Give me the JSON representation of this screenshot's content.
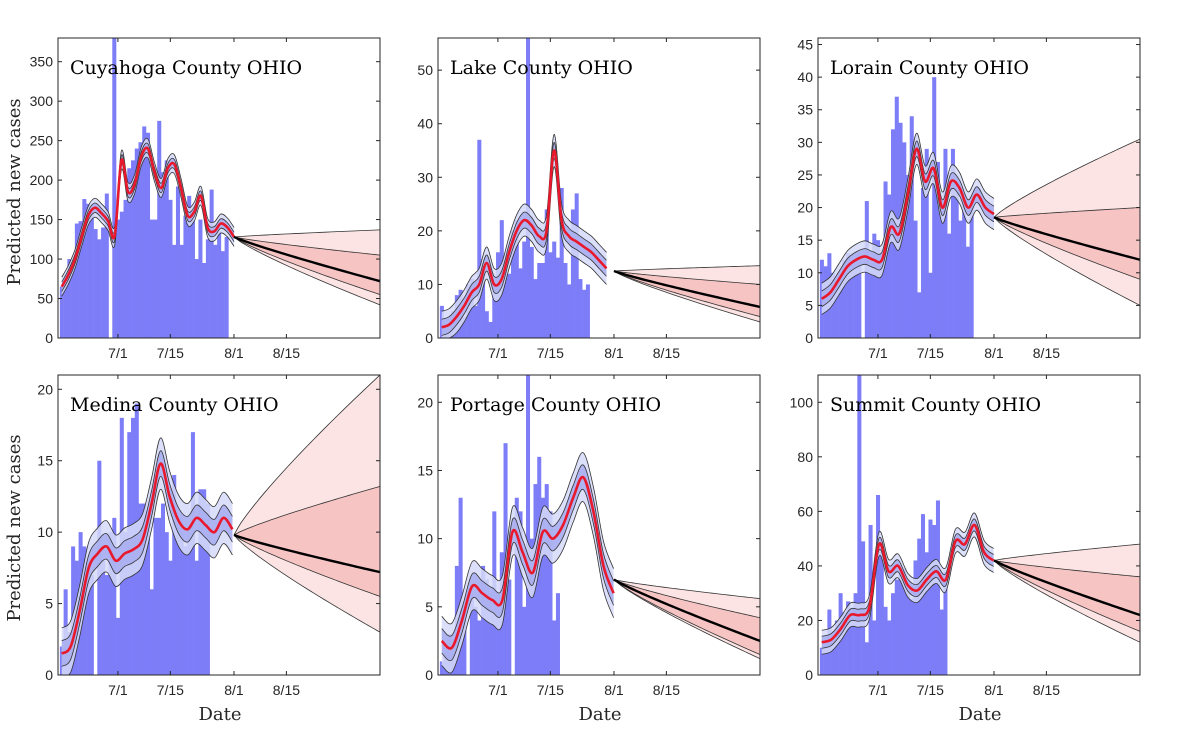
{
  "figure": {
    "ylabel": "Predicted new cases",
    "xlabel": "Date"
  },
  "colors": {
    "bars": "#7d7df8",
    "fit": "#e8192c",
    "band_inner": "#a9aef0",
    "band_outer": "#d5d9f8",
    "forecast": "#000000",
    "forecast_inner": "#f7c4c4",
    "forecast_outer": "#fce4e4"
  },
  "chart_data": [
    {
      "type": "bar",
      "title": "Cuyahoga County OHIO",
      "ylabel": "Predicted new cases",
      "xlabel": "",
      "ylim": [
        0,
        380
      ],
      "yticks": [
        0,
        50,
        100,
        150,
        200,
        250,
        300,
        350
      ],
      "xlim": [
        0,
        86
      ],
      "xticks": [
        {
          "x": 16,
          "label": "7/1"
        },
        {
          "x": 30,
          "label": "7/15"
        },
        {
          "x": 47,
          "label": "8/1"
        },
        {
          "x": 61,
          "label": "8/15"
        }
      ],
      "bars_x_start": 1,
      "bars": [
        65,
        75,
        100,
        95,
        145,
        148,
        176,
        170,
        160,
        138,
        125,
        140,
        183,
        0,
        380,
        150,
        160,
        175,
        215,
        225,
        240,
        248,
        268,
        260,
        150,
        150,
        275,
        210,
        225,
        175,
        118,
        192,
        118,
        155,
        180,
        150,
        100,
        150,
        95,
        125,
        188,
        118,
        135,
        110,
        128
      ],
      "fit": [
        65,
        80,
        100,
        128,
        155,
        165,
        158,
        148,
        130,
        225,
        185,
        195,
        230,
        240,
        210,
        190,
        215,
        220,
        190,
        155,
        160,
        180,
        140,
        135,
        145,
        140,
        128
      ],
      "fit_x_start": 1,
      "fit_x_step": 1.77,
      "band_inner_halfwidth": 6,
      "band_outer_halfwidth": 12,
      "forecast": {
        "x_start": 47,
        "x_end": 86,
        "start": 128,
        "end": 72,
        "inner_upper": 105,
        "inner_lower": 55,
        "outer_upper": 137,
        "outer_lower": 42
      }
    },
    {
      "type": "bar",
      "title": "Lake County OHIO",
      "ylabel": "",
      "xlabel": "",
      "ylim": [
        0,
        56
      ],
      "yticks": [
        0,
        10,
        20,
        30,
        40,
        50
      ],
      "xlim": [
        0,
        86
      ],
      "xticks": [
        {
          "x": 16,
          "label": "7/1"
        },
        {
          "x": 30,
          "label": "7/15"
        },
        {
          "x": 47,
          "label": "8/1"
        },
        {
          "x": 61,
          "label": "8/15"
        }
      ],
      "bars_x_start": 1,
      "bars": [
        6,
        2,
        3,
        5,
        8,
        9,
        4,
        10,
        11,
        6,
        37,
        14,
        5,
        3,
        10,
        16,
        22,
        14,
        12,
        20,
        22,
        13,
        18,
        56,
        17,
        11,
        14,
        14,
        24,
        16,
        18,
        15,
        28,
        14,
        10,
        24,
        27,
        11,
        9,
        10
      ],
      "fit": [
        2,
        2.5,
        4,
        6,
        8.5,
        10,
        14,
        10,
        11,
        16,
        20,
        22,
        21,
        19,
        20,
        35,
        22,
        19,
        18,
        17,
        16,
        14.5,
        13
      ],
      "fit_x_start": 1,
      "fit_x_step": 2.0,
      "band_inner_halfwidth": 1.5,
      "band_outer_halfwidth": 3,
      "forecast": {
        "x_start": 47,
        "x_end": 86,
        "start": 12.5,
        "end": 5.8,
        "inner_upper": 10,
        "inner_lower": 4,
        "outer_upper": 13.5,
        "outer_lower": 3
      }
    },
    {
      "type": "bar",
      "title": "Lorain County OHIO",
      "ylabel": "",
      "xlabel": "",
      "ylim": [
        0,
        46
      ],
      "yticks": [
        0,
        5,
        10,
        15,
        20,
        25,
        30,
        35,
        40,
        45
      ],
      "xlim": [
        0,
        86
      ],
      "xticks": [
        {
          "x": 16,
          "label": "7/1"
        },
        {
          "x": 30,
          "label": "7/15"
        },
        {
          "x": 47,
          "label": "8/1"
        },
        {
          "x": 61,
          "label": "8/15"
        }
      ],
      "bars_x_start": 1,
      "bars": [
        12,
        11,
        13,
        10,
        8,
        9,
        12,
        13,
        11,
        12,
        13,
        0,
        21,
        11,
        16,
        15,
        13,
        24,
        22,
        32,
        37,
        33,
        30,
        25,
        34,
        18,
        7,
        23,
        29,
        10,
        40,
        27,
        20,
        29,
        16,
        29,
        24,
        18,
        22,
        14,
        20
      ],
      "fit": [
        6,
        7,
        9,
        11,
        12,
        12.5,
        12,
        12,
        17,
        16,
        22,
        29,
        24,
        26,
        20,
        24,
        23,
        20,
        22,
        20,
        19
      ],
      "fit_x_start": 1,
      "fit_x_step": 2.3,
      "band_inner_halfwidth": 1.2,
      "band_outer_halfwidth": 2.4,
      "forecast": {
        "x_start": 47,
        "x_end": 86,
        "start": 18.5,
        "end": 12,
        "inner_upper": 20,
        "inner_lower": 9,
        "outer_upper": 30.5,
        "outer_lower": 5
      }
    },
    {
      "type": "bar",
      "title": "Medina County OHIO",
      "ylabel": "Predicted new cases",
      "xlabel": "Date",
      "ylim": [
        0,
        21
      ],
      "yticks": [
        0,
        5,
        10,
        15,
        20
      ],
      "xlim": [
        0,
        86
      ],
      "xticks": [
        {
          "x": 16,
          "label": "7/1"
        },
        {
          "x": 30,
          "label": "7/15"
        },
        {
          "x": 47,
          "label": "8/1"
        },
        {
          "x": 61,
          "label": "8/15"
        }
      ],
      "bars_x_start": 1,
      "bars": [
        2,
        6,
        3,
        9,
        8,
        10,
        9,
        8,
        7,
        0,
        15,
        8,
        7,
        10,
        11,
        4,
        18,
        10,
        17,
        18,
        19,
        12,
        12,
        11,
        6,
        11,
        11,
        12,
        10,
        8,
        14,
        11,
        11,
        9,
        10,
        17,
        8,
        13,
        13,
        12
      ],
      "fit": [
        1.5,
        2,
        4.5,
        7.5,
        8.5,
        9,
        8,
        8.5,
        8.8,
        9.5,
        12,
        14.8,
        12.5,
        10.8,
        10.2,
        11,
        10.5,
        10,
        11,
        10.2
      ],
      "fit_x_start": 1,
      "fit_x_step": 2.4,
      "band_inner_halfwidth": 0.9,
      "band_outer_halfwidth": 1.8,
      "forecast": {
        "x_start": 47,
        "x_end": 86,
        "start": 9.8,
        "end": 7.2,
        "inner_upper": 13.2,
        "inner_lower": 5.5,
        "outer_upper": 21,
        "outer_lower": 3
      }
    },
    {
      "type": "bar",
      "title": "Portage County OHIO",
      "ylabel": "",
      "xlabel": "Date",
      "ylim": [
        0,
        22
      ],
      "yticks": [
        0,
        5,
        10,
        15,
        20
      ],
      "xlim": [
        0,
        86
      ],
      "xticks": [
        {
          "x": 16,
          "label": "7/1"
        },
        {
          "x": 30,
          "label": "7/15"
        },
        {
          "x": 47,
          "label": "8/1"
        },
        {
          "x": 61,
          "label": "8/15"
        }
      ],
      "bars_x_start": 1,
      "bars": [
        1,
        2,
        3,
        2,
        8,
        13,
        5,
        0,
        6,
        5,
        4,
        8,
        7,
        6,
        12,
        6,
        9,
        17,
        7,
        0,
        13,
        12,
        5,
        22,
        10,
        14,
        16,
        13,
        14,
        12,
        4,
        6
      ],
      "fit": [
        2.5,
        2,
        4,
        6.5,
        6,
        5.5,
        5.5,
        10.5,
        9,
        7.5,
        10.5,
        10,
        11,
        13,
        14.5,
        12,
        8,
        6
      ],
      "fit_x_start": 1,
      "fit_x_step": 2.7,
      "band_inner_halfwidth": 0.9,
      "band_outer_halfwidth": 1.8,
      "forecast": {
        "x_start": 47,
        "x_end": 86,
        "start": 7,
        "end": 2.5,
        "inner_upper": 4.2,
        "inner_lower": 1.5,
        "outer_upper": 5.6,
        "outer_lower": 1.2
      }
    },
    {
      "type": "bar",
      "title": "Summit County OHIO",
      "ylabel": "",
      "xlabel": "Date",
      "ylim": [
        0,
        110
      ],
      "yticks": [
        0,
        20,
        40,
        60,
        80,
        100
      ],
      "xlim": [
        0,
        86
      ],
      "xticks": [
        {
          "x": 16,
          "label": "7/1"
        },
        {
          "x": 30,
          "label": "7/15"
        },
        {
          "x": 47,
          "label": "8/1"
        },
        {
          "x": 61,
          "label": "8/15"
        }
      ],
      "bars_x_start": 1,
      "bars": [
        10,
        12,
        24,
        16,
        20,
        30,
        23,
        27,
        21,
        30,
        110,
        49,
        12,
        55,
        20,
        66,
        45,
        25,
        20,
        30,
        35,
        38,
        39,
        31,
        28,
        42,
        50,
        59,
        45,
        57,
        55,
        64,
        24,
        38
      ],
      "fit": [
        12,
        13,
        17,
        22,
        22,
        25,
        48,
        38,
        40,
        33,
        31,
        35,
        38,
        35,
        49,
        48,
        55,
        45,
        42
      ],
      "fit_x_start": 1,
      "fit_x_step": 2.55,
      "band_inner_halfwidth": 2.2,
      "band_outer_halfwidth": 4.4,
      "forecast": {
        "x_start": 47,
        "x_end": 86,
        "start": 42,
        "end": 22,
        "inner_upper": 36,
        "inner_lower": 16,
        "outer_upper": 48,
        "outer_lower": 12
      }
    }
  ]
}
